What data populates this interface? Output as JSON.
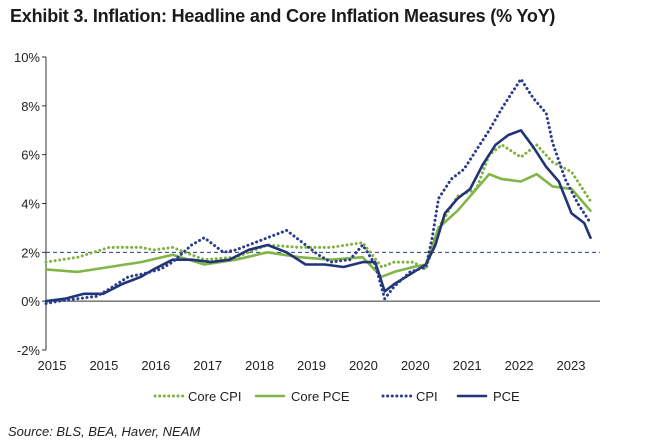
{
  "title": "Exhibit 3. Inflation: Headline and Core Inflation Measures (% YoY)",
  "source": "Source: BLS, BEA, Haver, NEAM",
  "chart_data": {
    "type": "line",
    "title": "Exhibit 3. Inflation: Headline and Core Inflation Measures (% YoY)",
    "xlabel": "",
    "ylabel": "",
    "ylim": [
      -2,
      10
    ],
    "xlim": [
      2015.0,
      2023.75
    ],
    "yticks": [
      -2,
      0,
      2,
      4,
      6,
      8,
      10
    ],
    "ytick_labels": [
      "-2%",
      "0%",
      "2%",
      "4%",
      "6%",
      "8%",
      "10%"
    ],
    "xtick_labels": [
      "2015",
      "2015",
      "2016",
      "2017",
      "2018",
      "2019",
      "2020",
      "2020",
      "2021",
      "2022",
      "2023"
    ],
    "reference_line": {
      "value": 2,
      "style": "dashed"
    },
    "legend_position": "bottom",
    "series": [
      {
        "name": "Core CPI",
        "color": "#7fb241",
        "style": "dotted",
        "x": [
          2015.0,
          2015.5,
          2016.0,
          2016.5,
          2016.7,
          2017.0,
          2017.5,
          2018.0,
          2018.5,
          2019.0,
          2019.5,
          2020.0,
          2020.3,
          2020.5,
          2020.8,
          2021.0,
          2021.2,
          2021.5,
          2021.8,
          2022.0,
          2022.2,
          2022.5,
          2022.75,
          2023.0,
          2023.3,
          2023.6
        ],
        "values": [
          1.6,
          1.8,
          2.2,
          2.2,
          2.1,
          2.2,
          1.7,
          1.8,
          2.3,
          2.2,
          2.2,
          2.4,
          1.4,
          1.6,
          1.6,
          1.3,
          3.0,
          4.3,
          4.6,
          6.0,
          6.4,
          5.9,
          6.4,
          5.7,
          5.3,
          4.1
        ]
      },
      {
        "name": "Core PCE",
        "color": "#82b547",
        "style": "solid",
        "x": [
          2015.0,
          2015.5,
          2016.0,
          2016.5,
          2017.0,
          2017.5,
          2018.0,
          2018.5,
          2019.0,
          2019.5,
          2020.0,
          2020.3,
          2020.5,
          2020.8,
          2021.0,
          2021.2,
          2021.5,
          2021.8,
          2022.0,
          2022.2,
          2022.5,
          2022.75,
          2023.0,
          2023.3,
          2023.6
        ],
        "values": [
          1.3,
          1.2,
          1.4,
          1.6,
          1.9,
          1.5,
          1.7,
          2.0,
          1.8,
          1.7,
          1.8,
          1.0,
          1.2,
          1.4,
          1.5,
          3.0,
          3.7,
          4.6,
          5.2,
          5.0,
          4.9,
          5.2,
          4.7,
          4.6,
          3.7
        ]
      },
      {
        "name": "CPI",
        "color": "#2a3d8c",
        "style": "dotted",
        "x": [
          2015.0,
          2015.2,
          2015.5,
          2015.8,
          2016.0,
          2016.3,
          2016.5,
          2016.8,
          2017.0,
          2017.3,
          2017.5,
          2017.8,
          2018.0,
          2018.3,
          2018.5,
          2018.8,
          2019.0,
          2019.3,
          2019.5,
          2019.8,
          2020.0,
          2020.2,
          2020.35,
          2020.5,
          2020.75,
          2021.0,
          2021.1,
          2021.2,
          2021.4,
          2021.6,
          2021.8,
          2022.0,
          2022.2,
          2022.35,
          2022.5,
          2022.7,
          2022.9,
          2023.0,
          2023.2,
          2023.4,
          2023.6
        ],
        "values": [
          -0.1,
          0.0,
          0.1,
          0.2,
          0.5,
          1.0,
          1.1,
          1.3,
          1.6,
          2.3,
          2.6,
          2.0,
          2.1,
          2.4,
          2.6,
          2.9,
          2.5,
          1.9,
          1.6,
          1.7,
          2.3,
          1.5,
          0.1,
          0.6,
          1.2,
          1.4,
          2.6,
          4.2,
          5.0,
          5.4,
          6.2,
          7.0,
          7.9,
          8.5,
          9.1,
          8.3,
          7.7,
          6.5,
          5.0,
          4.0,
          3.2
        ]
      },
      {
        "name": "PCE",
        "color": "#223377",
        "style": "solid",
        "x": [
          2015.0,
          2015.3,
          2015.6,
          2015.9,
          2016.2,
          2016.5,
          2016.7,
          2017.0,
          2017.3,
          2017.6,
          2017.9,
          2018.2,
          2018.5,
          2018.8,
          2019.1,
          2019.4,
          2019.7,
          2020.0,
          2020.2,
          2020.35,
          2020.5,
          2020.75,
          2021.0,
          2021.15,
          2021.3,
          2021.5,
          2021.7,
          2021.9,
          2022.1,
          2022.3,
          2022.5,
          2022.7,
          2022.9,
          2023.1,
          2023.3,
          2023.5,
          2023.6
        ],
        "values": [
          0.0,
          0.1,
          0.3,
          0.3,
          0.7,
          1.0,
          1.3,
          1.7,
          1.7,
          1.6,
          1.7,
          2.1,
          2.3,
          2.0,
          1.5,
          1.5,
          1.4,
          1.6,
          1.6,
          0.4,
          0.7,
          1.1,
          1.5,
          2.3,
          3.6,
          4.2,
          4.6,
          5.6,
          6.4,
          6.8,
          7.0,
          6.3,
          5.5,
          4.9,
          3.6,
          3.2,
          2.6
        ]
      }
    ]
  }
}
